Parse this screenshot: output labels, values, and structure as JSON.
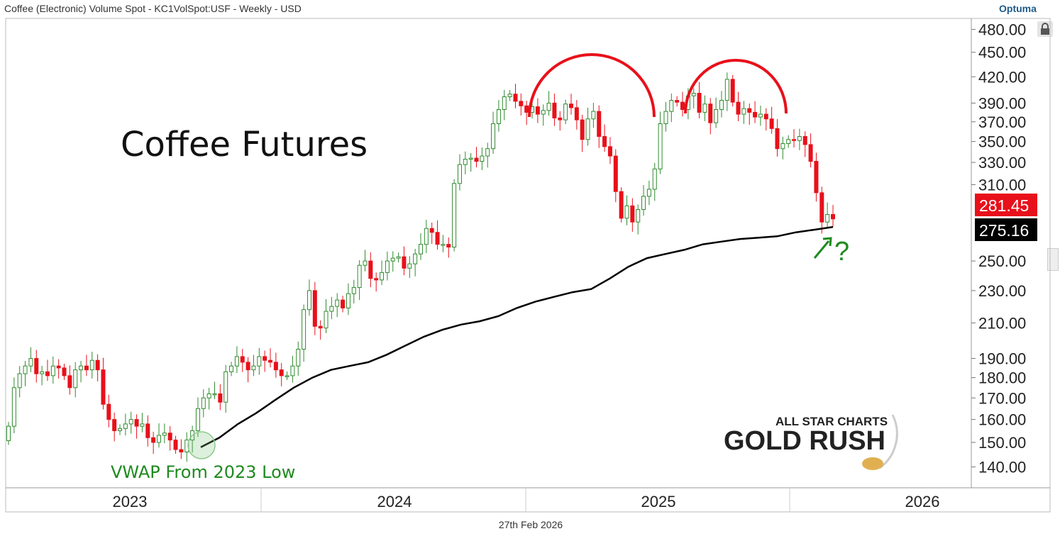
{
  "header": {
    "instrument": "Coffee (Electronic) Volume Spot - KC1VolSpot:USF - Weekly - USD",
    "brand": "Optuma"
  },
  "footer": {
    "date": "27th Feb 2026"
  },
  "annotations": {
    "title": "Coffee Futures",
    "vwap_note": "VWAP From 2023 Low",
    "question": "?"
  },
  "watermark": {
    "line1": "ALL STAR CHARTS",
    "line2": "GOLD RUSH"
  },
  "colors": {
    "up": "#2e8b2e",
    "down": "#e8101a",
    "vwap": "#000000",
    "arc": "#e8101a",
    "note": "#1f8a1f"
  },
  "chart_data": {
    "type": "candlestick",
    "title": "Coffee Futures",
    "scale": "log",
    "ylim": [
      132,
      495
    ],
    "y_ticks": [
      "480.00",
      "450.00",
      "420.00",
      "390.00",
      "370.00",
      "350.00",
      "330.00",
      "310.00",
      "250.00",
      "230.00",
      "210.00",
      "190.00",
      "180.00",
      "170.00",
      "160.00",
      "150.00",
      "140.00"
    ],
    "x_labels": [
      "2023",
      "2024",
      "2025",
      "2026"
    ],
    "last_price": "281.45",
    "vwap_value": "275.16",
    "series": [
      {
        "name": "Price",
        "kind": "candles",
        "values": [
          157,
          175,
          182,
          186,
          190,
          182,
          183,
          181,
          186,
          185,
          181,
          175,
          184,
          186,
          184,
          189,
          184,
          167,
          160,
          155,
          156,
          158,
          160,
          157,
          158,
          152,
          150,
          153,
          154,
          151,
          147,
          146,
          151,
          155,
          165,
          170,
          172,
          172,
          168,
          183,
          186,
          191,
          188,
          184,
          186,
          191,
          189,
          188,
          184,
          181,
          181,
          186,
          195,
          218,
          230,
          208,
          207,
          217,
          220,
          224,
          219,
          228,
          232,
          247,
          250,
          238,
          237,
          242,
          250,
          252,
          253,
          245,
          248,
          255,
          262,
          274,
          271,
          262,
          262,
          260,
          311,
          328,
          333,
          334,
          331,
          336,
          343,
          368,
          383,
          397,
          400,
          392,
          387,
          380,
          386,
          378,
          382,
          390,
          374,
          372,
          389,
          385,
          372,
          352,
          373,
          381,
          355,
          345,
          336,
          304,
          282,
          292,
          279,
          289,
          300,
          306,
          324,
          368,
          381,
          393,
          391,
          383,
          398,
          401,
          380,
          389,
          369,
          383,
          393,
          417,
          391,
          378,
          384,
          380,
          375,
          378,
          373,
          363,
          343,
          348,
          352,
          351,
          355,
          347,
          331,
          303,
          279,
          285,
          281.45
        ]
      },
      {
        "name": "VWAP From 2023 Low",
        "kind": "line",
        "values": [
          148,
          152,
          158,
          163,
          169,
          175,
          180,
          184,
          186,
          188,
          192,
          197,
          202,
          206,
          209,
          211,
          214,
          219,
          223,
          226,
          229,
          231,
          238,
          246,
          252,
          255,
          258,
          262,
          264,
          266,
          267,
          268,
          271,
          273,
          275.16
        ]
      }
    ]
  }
}
